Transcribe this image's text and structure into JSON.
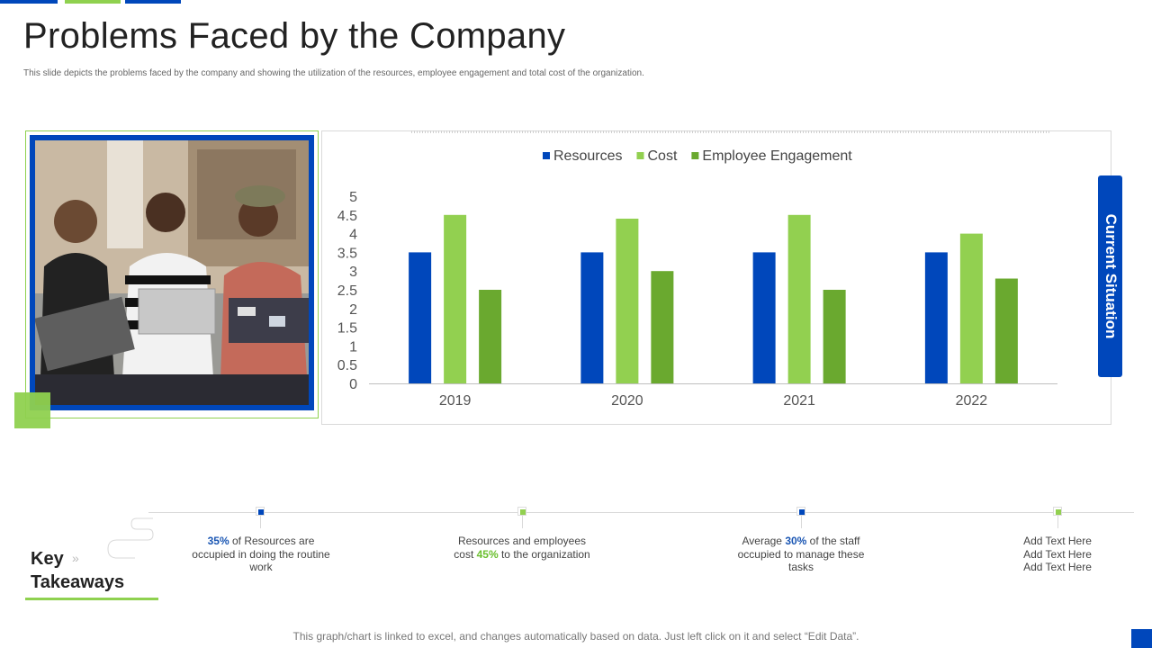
{
  "page": {
    "title": "Problems Faced by the Company",
    "subtitle": "This slide depicts the problems faced by the company and showing the utilization of the resources, employee engagement and total cost of the organization.",
    "footnote": "This graph/chart is linked to excel,  and changes automatically based on data. Just left click on it and select “Edit Data”.",
    "side_tab": "Current Situation"
  },
  "colors": {
    "resources": "#0047bb",
    "cost": "#92d050",
    "engagement": "#6aa92f"
  },
  "chart_data": {
    "type": "bar",
    "categories": [
      "2019",
      "2020",
      "2021",
      "2022"
    ],
    "series": [
      {
        "name": "Resources",
        "values": [
          3.5,
          3.5,
          3.5,
          3.5
        ]
      },
      {
        "name": "Cost",
        "values": [
          4.5,
          4.4,
          4.5,
          4.0
        ]
      },
      {
        "name": "Employee Engagement",
        "values": [
          2.5,
          3.0,
          2.5,
          2.8
        ]
      }
    ],
    "ylim": [
      0,
      5
    ],
    "yticks": [
      "0",
      "0.5",
      "1",
      "1.5",
      "2",
      "2.5",
      "3",
      "3.5",
      "4",
      "4.5",
      "5"
    ],
    "legend": "top",
    "grid": false
  },
  "key_takeaways": {
    "heading_line1": "Key",
    "heading_line2": "Takeaways",
    "items": [
      {
        "pre": "",
        "highlight": "35%",
        "post": " of Resources are occupied in doing the routine work"
      },
      {
        "pre": "Resources and employees cost ",
        "highlight": "45%",
        "post": " to the organization"
      },
      {
        "pre": "Average ",
        "highlight": "30%",
        "post": "  of the staff occupied to manage these tasks"
      },
      {
        "line1": "Add Text Here",
        "line2": "Add Text Here",
        "line3": "Add Text Here"
      }
    ]
  }
}
